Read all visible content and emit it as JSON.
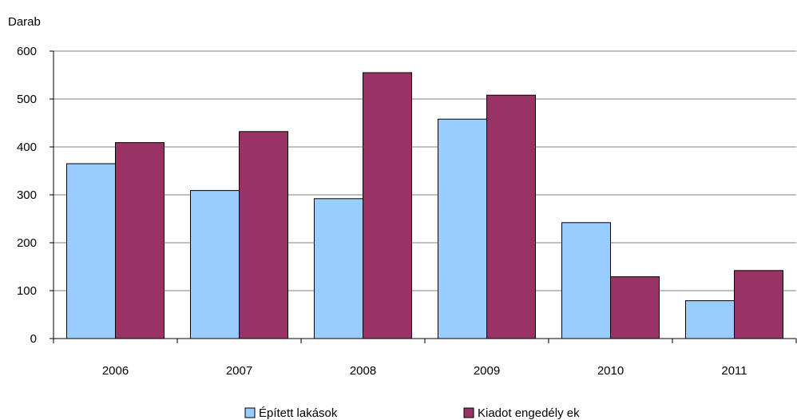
{
  "chart_data": {
    "type": "bar",
    "ylabel": "Darab",
    "categories": [
      "2006",
      "2007",
      "2008",
      "2009",
      "2010",
      "2011"
    ],
    "series": [
      {
        "name": "Épített lakások",
        "values": [
          365,
          309,
          292,
          458,
          242,
          79
        ],
        "color": "#99ccff"
      },
      {
        "name": "Kiadot engedély ek",
        "values": [
          409,
          432,
          555,
          508,
          129,
          142
        ],
        "color": "#993366"
      }
    ],
    "ylim": [
      0,
      600
    ],
    "yticks": [
      "0",
      "100",
      "200",
      "300",
      "400",
      "500",
      "600"
    ],
    "grid": true,
    "legend_position": "bottom"
  }
}
